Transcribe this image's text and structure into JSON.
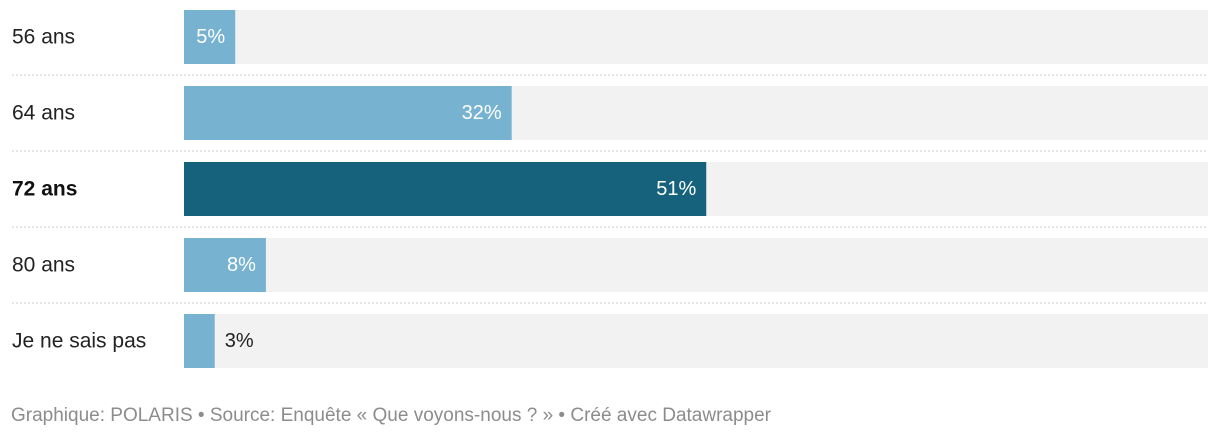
{
  "chart_data": {
    "type": "bar",
    "orientation": "horizontal",
    "categories": [
      "56 ans",
      "64 ans",
      "72 ans",
      "80 ans",
      "Je ne sais pas"
    ],
    "values": [
      5,
      32,
      51,
      8,
      3
    ],
    "value_labels": [
      "5%",
      "32%",
      "51%",
      "8%",
      "3%"
    ],
    "highlighted": [
      false,
      false,
      true,
      false,
      false
    ],
    "unit": "%",
    "xlim": [
      0,
      100
    ],
    "title": "",
    "xlabel": "",
    "ylabel": "",
    "grid": false,
    "legend": "none",
    "colors": {
      "bar": "#77b2d1",
      "bar_highlight": "#16627d",
      "track": "#f2f2f2",
      "separator": "#cccccc",
      "label_inside": "#ffffff",
      "label_outside": "#222222"
    }
  },
  "footer": {
    "text": "Graphique: POLARIS • Source: Enquête « Que voyons-nous ? » • Créé avec Datawrapper"
  }
}
